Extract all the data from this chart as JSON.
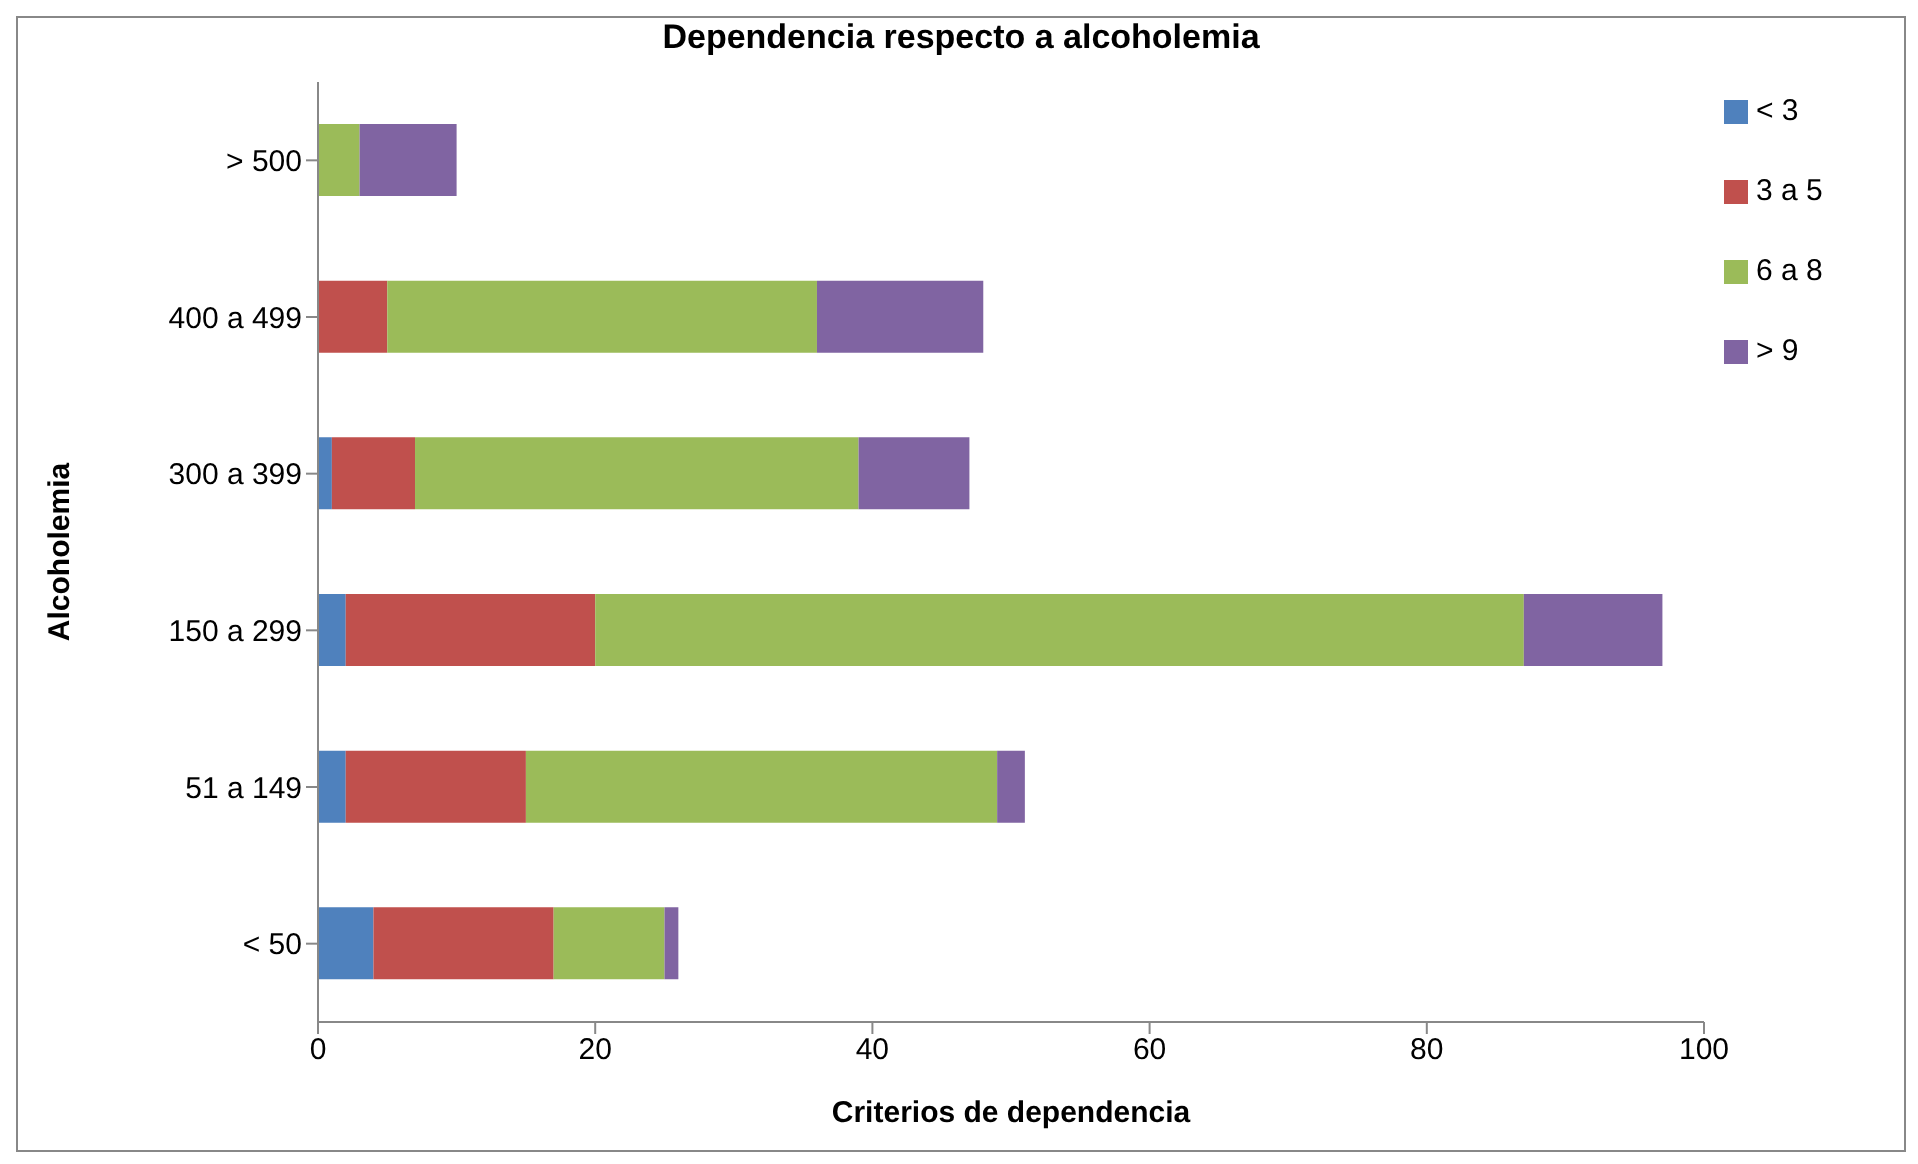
{
  "chart_data": {
    "type": "bar",
    "orientation": "horizontal",
    "stacked": true,
    "title": "Dependencia respecto a alcoholemia",
    "xlabel": "Criterios de dependencia",
    "ylabel": "Alcoholemia",
    "categories": [
      "> 500",
      "400 a 499",
      "300 a 399",
      "150 a 299",
      "51 a 149",
      "< 50"
    ],
    "series": [
      {
        "name": "< 3",
        "color": "#4f81bd",
        "values": [
          0,
          0,
          1,
          2,
          2,
          4
        ]
      },
      {
        "name": "3 a 5",
        "color": "#c0504d",
        "values": [
          0,
          5,
          6,
          18,
          13,
          13
        ]
      },
      {
        "name": "6 a 8",
        "color": "#9bbb59",
        "values": [
          3,
          31,
          32,
          67,
          34,
          8
        ]
      },
      {
        "name": "> 9",
        "color": "#8064a2",
        "values": [
          7,
          12,
          8,
          10,
          2,
          1
        ]
      }
    ],
    "xlim": [
      0,
      100
    ],
    "xticks": [
      0,
      20,
      40,
      60,
      80,
      100
    ],
    "grid": false,
    "legend": "right"
  }
}
